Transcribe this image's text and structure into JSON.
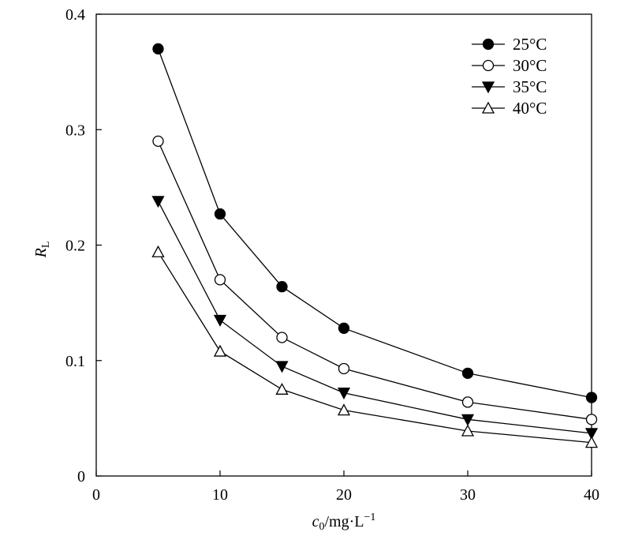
{
  "chart_data": {
    "type": "line",
    "xlabel": {
      "main": "c",
      "sub": "0",
      "rest": "/mg·L",
      "sup": "−1"
    },
    "ylabel": {
      "main": "R",
      "sub": "L"
    },
    "xlim": [
      0,
      40
    ],
    "ylim": [
      0,
      0.4
    ],
    "xticks": [
      0,
      10,
      20,
      30,
      40
    ],
    "yticks": [
      0,
      0.1,
      0.2,
      0.3,
      0.4
    ],
    "xtick_labels": [
      "0",
      "10",
      "20",
      "30",
      "40"
    ],
    "ytick_labels": [
      "0",
      "0.1",
      "0.2",
      "0.3",
      "0.4"
    ],
    "x": [
      5,
      10,
      15,
      20,
      30,
      40
    ],
    "grid": false,
    "legend_position": "top-right",
    "series": [
      {
        "name": "25°C",
        "marker": "filled-circle",
        "values": [
          0.37,
          0.227,
          0.164,
          0.128,
          0.089,
          0.068
        ]
      },
      {
        "name": "30°C",
        "marker": "open-circle",
        "values": [
          0.29,
          0.17,
          0.12,
          0.093,
          0.064,
          0.049
        ]
      },
      {
        "name": "35°C",
        "marker": "filled-triangle-down",
        "values": [
          0.238,
          0.135,
          0.095,
          0.072,
          0.049,
          0.037
        ]
      },
      {
        "name": "40°C",
        "marker": "open-triangle-up",
        "values": [
          0.194,
          0.108,
          0.075,
          0.057,
          0.039,
          0.029
        ]
      }
    ],
    "colors": {
      "line": "#000000",
      "filled": "#000000",
      "open": "#ffffff"
    }
  }
}
